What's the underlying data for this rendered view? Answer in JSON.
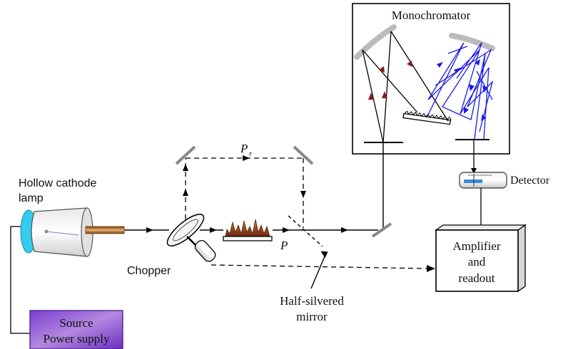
{
  "labels": {
    "monochromator": "Monochromator",
    "detector": "Detector",
    "lamp_line1": "Hollow cathode",
    "lamp_line2": "lamp",
    "chopper": "Chopper",
    "reference_beam": "P",
    "reference_beam_sub": "r",
    "sample_beam": "P",
    "mirror_line1": "Half-silvered",
    "mirror_line2": "mirror",
    "amp_line1": "Amplifier",
    "amp_line2": "and",
    "amp_line3": "readout",
    "source_line1": "Source",
    "source_line2": "Power supply"
  },
  "colors": {
    "beam": "#000000",
    "grating_rays_red": "#8b1a1a",
    "grating_rays_blue": "#1a1ae6",
    "lamp_window": "#33ccee",
    "lamp_rod": "#c0783a",
    "flame": "#8b3a1a",
    "power_supply": "#9966cc"
  }
}
